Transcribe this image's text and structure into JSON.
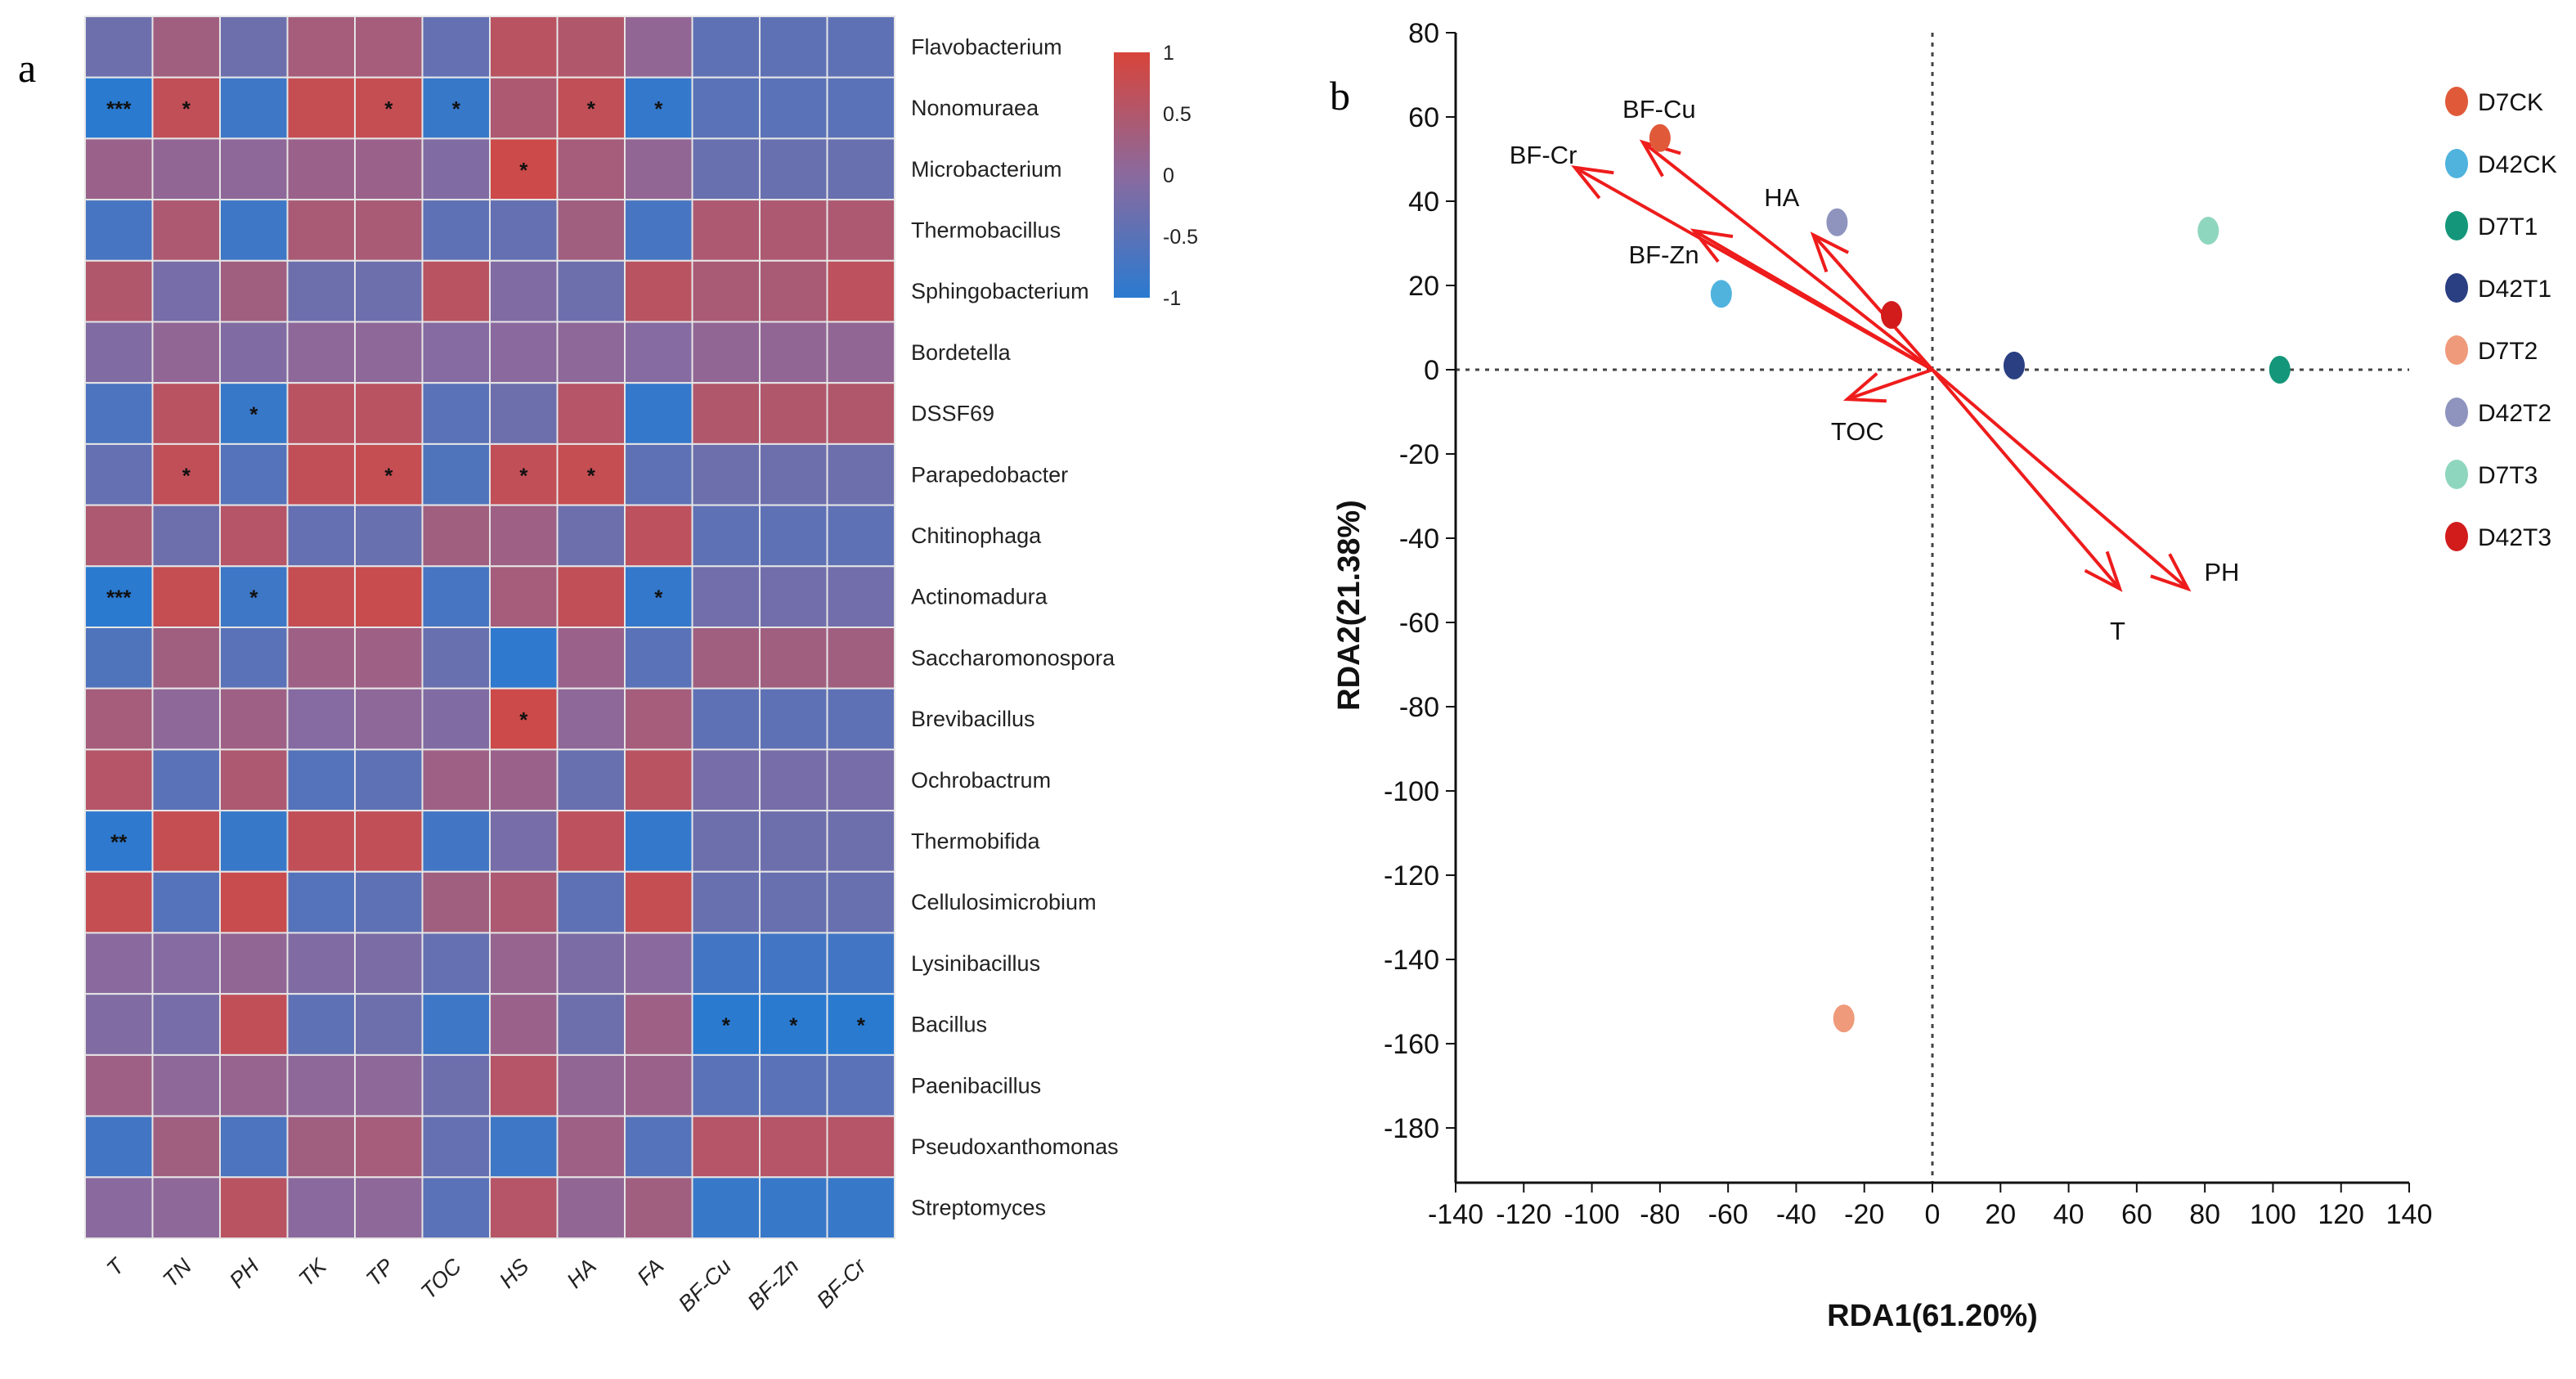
{
  "panel_a_label": "a",
  "panel_b_label": "b",
  "chart_data": [
    {
      "type": "heatmap",
      "title": "",
      "rows": [
        "Flavobacterium",
        "Nonomuraea",
        "Microbacterium",
        "Thermobacillus",
        "Sphingobacterium",
        "Bordetella",
        "DSSF69",
        "Parapedobacter",
        "Chitinophaga",
        "Actinomadura",
        "Saccharomonospora",
        "Brevibacillus",
        "Ochrobactrum",
        "Thermobifida",
        "Cellulosimicrobium",
        "Lysinibacillus",
        "Bacillus",
        "Paenibacillus",
        "Pseudoxanthomonas",
        "Streptomyces"
      ],
      "columns": [
        "T",
        "TN",
        "PH",
        "TK",
        "TP",
        "TOC",
        "HS",
        "HA",
        "FA",
        "BF-Cu",
        "BF-Zn",
        "BF-Cr"
      ],
      "values": [
        [
          -0.3,
          0.3,
          -0.3,
          0.35,
          0.35,
          -0.4,
          0.6,
          0.5,
          0.1,
          -0.45,
          -0.45,
          -0.45
        ],
        [
          -1.0,
          0.7,
          -0.8,
          0.75,
          0.75,
          -0.85,
          0.45,
          0.7,
          -0.9,
          -0.5,
          -0.5,
          -0.5
        ],
        [
          0.2,
          0.1,
          0.05,
          0.2,
          0.2,
          -0.1,
          0.85,
          0.35,
          0.1,
          -0.35,
          -0.35,
          -0.35
        ],
        [
          -0.7,
          0.45,
          -0.8,
          0.4,
          0.4,
          -0.45,
          -0.4,
          0.3,
          -0.7,
          0.45,
          0.45,
          0.45
        ],
        [
          0.5,
          -0.2,
          0.3,
          -0.3,
          -0.3,
          0.6,
          -0.1,
          -0.3,
          0.6,
          0.4,
          0.4,
          0.65
        ],
        [
          -0.1,
          0.1,
          -0.1,
          0.05,
          0.05,
          -0.05,
          0.0,
          0.05,
          -0.05,
          0.1,
          0.1,
          0.1
        ],
        [
          -0.65,
          0.6,
          -0.85,
          0.6,
          0.6,
          -0.5,
          -0.3,
          0.55,
          -0.9,
          0.5,
          0.5,
          0.5
        ],
        [
          -0.4,
          0.7,
          -0.55,
          0.7,
          0.75,
          -0.6,
          0.7,
          0.75,
          -0.45,
          -0.3,
          -0.3,
          -0.3
        ],
        [
          0.45,
          -0.3,
          0.55,
          -0.4,
          -0.35,
          0.3,
          0.25,
          -0.3,
          0.65,
          -0.45,
          -0.45,
          -0.45
        ],
        [
          -1.0,
          0.75,
          -0.8,
          0.75,
          0.8,
          -0.7,
          0.35,
          0.7,
          -0.9,
          -0.25,
          -0.25,
          -0.25
        ],
        [
          -0.6,
          0.3,
          -0.5,
          0.25,
          0.25,
          -0.35,
          -0.95,
          0.2,
          -0.5,
          0.3,
          0.3,
          0.3
        ],
        [
          0.35,
          0.05,
          0.25,
          -0.05,
          0.05,
          -0.1,
          0.85,
          0.05,
          0.35,
          -0.45,
          -0.45,
          -0.45
        ],
        [
          0.55,
          -0.5,
          0.45,
          -0.55,
          -0.45,
          0.25,
          0.2,
          -0.35,
          0.6,
          -0.2,
          -0.2,
          -0.2
        ],
        [
          -0.95,
          0.75,
          -0.85,
          0.7,
          0.7,
          -0.75,
          -0.2,
          0.65,
          -0.9,
          -0.3,
          -0.3,
          -0.3
        ],
        [
          0.75,
          -0.55,
          0.8,
          -0.55,
          -0.45,
          0.3,
          0.45,
          -0.45,
          0.75,
          -0.35,
          -0.35,
          -0.35
        ],
        [
          0.0,
          -0.05,
          0.1,
          -0.1,
          -0.15,
          -0.4,
          0.15,
          -0.15,
          0.0,
          -0.75,
          -0.75,
          -0.75
        ],
        [
          -0.1,
          -0.2,
          0.7,
          -0.45,
          -0.3,
          -0.8,
          0.2,
          -0.3,
          0.25,
          -1.0,
          -1.0,
          -1.0
        ],
        [
          0.25,
          0.05,
          0.15,
          0.05,
          0.05,
          -0.3,
          0.55,
          0.1,
          0.2,
          -0.5,
          -0.5,
          -0.5
        ],
        [
          -0.75,
          0.3,
          -0.65,
          0.3,
          0.35,
          -0.4,
          -0.8,
          0.25,
          -0.55,
          0.55,
          0.55,
          0.55
        ],
        [
          0.0,
          0.05,
          0.6,
          0.0,
          0.05,
          -0.5,
          0.55,
          0.1,
          0.3,
          -0.85,
          -0.85,
          -0.85
        ]
      ],
      "significance": [
        [
          "",
          "",
          "",
          "",
          "",
          "",
          "",
          "",
          "",
          "",
          "",
          ""
        ],
        [
          "***",
          "*",
          "",
          "",
          "*",
          "*",
          "",
          "*",
          "*",
          "",
          "",
          ""
        ],
        [
          "",
          "",
          "",
          "",
          "",
          "",
          "*",
          "",
          "",
          "",
          "",
          ""
        ],
        [
          "",
          "",
          "",
          "",
          "",
          "",
          "",
          "",
          "",
          "",
          "",
          ""
        ],
        [
          "",
          "",
          "",
          "",
          "",
          "",
          "",
          "",
          "",
          "",
          "",
          ""
        ],
        [
          "",
          "",
          "",
          "",
          "",
          "",
          "",
          "",
          "",
          "",
          "",
          ""
        ],
        [
          "",
          "",
          "*",
          "",
          "",
          "",
          "",
          "",
          "",
          "",
          "",
          ""
        ],
        [
          "",
          "*",
          "",
          "",
          "*",
          "",
          "*",
          "*",
          "",
          "",
          "",
          ""
        ],
        [
          "",
          "",
          "",
          "",
          "",
          "",
          "",
          "",
          "",
          "",
          "",
          ""
        ],
        [
          "***",
          "",
          "*",
          "",
          "",
          "",
          "",
          "",
          "*",
          "",
          "",
          ""
        ],
        [
          "",
          "",
          "",
          "",
          "",
          "",
          "",
          "",
          "",
          "",
          "",
          ""
        ],
        [
          "",
          "",
          "",
          "",
          "",
          "",
          "*",
          "",
          "",
          "",
          "",
          ""
        ],
        [
          "",
          "",
          "",
          "",
          "",
          "",
          "",
          "",
          "",
          "",
          "",
          ""
        ],
        [
          "**",
          "",
          "",
          "",
          "",
          "",
          "",
          "",
          "",
          "",
          "",
          ""
        ],
        [
          "",
          "",
          "",
          "",
          "",
          "",
          "",
          "",
          "",
          "",
          "",
          ""
        ],
        [
          "",
          "",
          "",
          "",
          "",
          "",
          "",
          "",
          "",
          "",
          "",
          ""
        ],
        [
          "",
          "",
          "",
          "",
          "",
          "",
          "",
          "",
          "",
          "*",
          "*",
          "*"
        ],
        [
          "",
          "",
          "",
          "",
          "",
          "",
          "",
          "",
          "",
          "",
          "",
          ""
        ],
        [
          "",
          "",
          "",
          "",
          "",
          "",
          "",
          "",
          "",
          "",
          "",
          ""
        ],
        [
          "",
          "",
          "",
          "",
          "",
          "",
          "",
          "",
          "",
          "",
          "",
          ""
        ]
      ],
      "colorbar": {
        "min": -1,
        "max": 1,
        "ticks": [
          "1",
          "0.5",
          "0",
          "-0.5",
          "-1"
        ],
        "low_color": "#2a7ad0",
        "mid_color": "#8a6a9e",
        "high_color": "#d8443a"
      }
    },
    {
      "type": "scatter",
      "title": "",
      "xlabel": "RDA1(61.20%)",
      "ylabel": "RDA2(21.38%)",
      "xlim": [
        -140,
        140
      ],
      "ylim": [
        -193,
        80
      ],
      "xticks": [
        -140,
        -120,
        -100,
        -80,
        -60,
        -40,
        -20,
        0,
        20,
        40,
        60,
        80,
        100,
        120,
        140
      ],
      "yticks": [
        80,
        60,
        40,
        20,
        0,
        -20,
        -40,
        -60,
        -80,
        -100,
        -120,
        -140,
        -160,
        -180
      ],
      "points": [
        {
          "name": "D7CK",
          "x": -80,
          "y": 55,
          "color": "#e05a3a"
        },
        {
          "name": "D42CK",
          "x": -62,
          "y": 18,
          "color": "#4fb3de"
        },
        {
          "name": "D7T1",
          "x": 102,
          "y": 0,
          "color": "#14967a"
        },
        {
          "name": "D42T1",
          "x": 24,
          "y": 1,
          "color": "#2a3f82"
        },
        {
          "name": "D7T2",
          "x": -26,
          "y": -154,
          "color": "#ef9a7a"
        },
        {
          "name": "D42T2",
          "x": -28,
          "y": 35,
          "color": "#8e94be"
        },
        {
          "name": "D7T3",
          "x": 81,
          "y": 33,
          "color": "#8fd6bf"
        },
        {
          "name": "D42T3",
          "x": -12,
          "y": 13,
          "color": "#d21c1c"
        }
      ],
      "vectors": [
        {
          "name": "BF-Cu",
          "x": -85,
          "y": 54
        },
        {
          "name": "BF-Cr",
          "x": -105,
          "y": 48
        },
        {
          "name": "BF-Zn",
          "x": -70,
          "y": 33
        },
        {
          "name": "HA",
          "x": -35,
          "y": 32
        },
        {
          "name": "TOC",
          "x": -25,
          "y": -7
        },
        {
          "name": "T",
          "x": 55,
          "y": -52
        },
        {
          "name": "PH",
          "x": 75,
          "y": -52
        }
      ],
      "legend": {
        "position": "right",
        "entries": [
          "D7CK",
          "D42CK",
          "D7T1",
          "D42T1",
          "D7T2",
          "D42T2",
          "D7T3",
          "D42T3"
        ]
      },
      "reference_lines": {
        "x": 0,
        "y": 0
      }
    }
  ]
}
